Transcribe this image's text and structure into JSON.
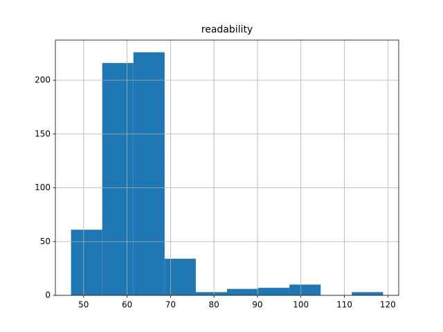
{
  "chart_data": {
    "type": "histogram",
    "title": "readability",
    "bins": [
      47.1,
      54.28,
      61.46,
      68.64,
      75.82,
      83.0,
      90.18,
      97.36,
      104.54,
      111.72,
      118.9
    ],
    "counts": [
      61,
      216,
      226,
      34,
      3,
      6,
      7,
      10,
      0,
      3
    ],
    "color": "#1f77b4",
    "xlim": [
      43.5,
      122.5
    ],
    "xticks": [
      50,
      60,
      70,
      80,
      90,
      100,
      110,
      120
    ],
    "ylim": [
      0,
      237.3
    ],
    "yticks": [
      0,
      50,
      100,
      150,
      200
    ],
    "grid": true
  }
}
